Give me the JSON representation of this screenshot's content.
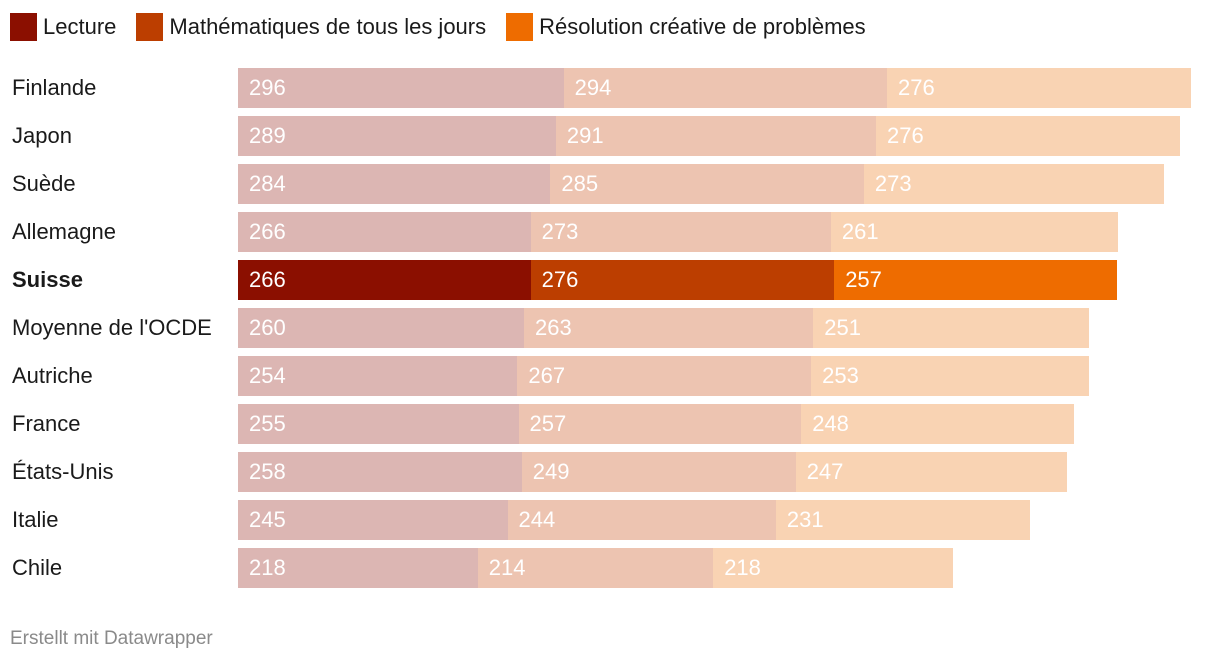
{
  "chart_data": {
    "type": "bar",
    "orientation": "horizontal",
    "stacked": true,
    "categories": [
      "Finlande",
      "Japon",
      "Suède",
      "Allemagne",
      "Suisse",
      "Moyenne de l'OCDE",
      "Autriche",
      "France",
      "États-Unis",
      "Italie",
      "Chile"
    ],
    "highlight": "Suisse",
    "series": [
      {
        "name": "Lecture",
        "color": "#8b0f00",
        "muted_color": "#dcb6b3",
        "values": [
          296,
          289,
          284,
          266,
          266,
          260,
          254,
          255,
          258,
          245,
          218
        ]
      },
      {
        "name": "Mathématiques de tous les jours",
        "color": "#bc3e00",
        "muted_color": "#edc4b1",
        "values": [
          294,
          291,
          285,
          273,
          276,
          263,
          267,
          257,
          249,
          244,
          214
        ]
      },
      {
        "name": "Résolution créative de problèmes",
        "color": "#ee6c00",
        "muted_color": "#f9d3b3",
        "values": [
          276,
          276,
          273,
          261,
          257,
          251,
          253,
          248,
          247,
          231,
          218
        ]
      }
    ],
    "legend_position": "top-left",
    "title": "",
    "xlabel": "",
    "ylabel": ""
  },
  "footer": {
    "credit": "Erstellt mit Datawrapper"
  }
}
